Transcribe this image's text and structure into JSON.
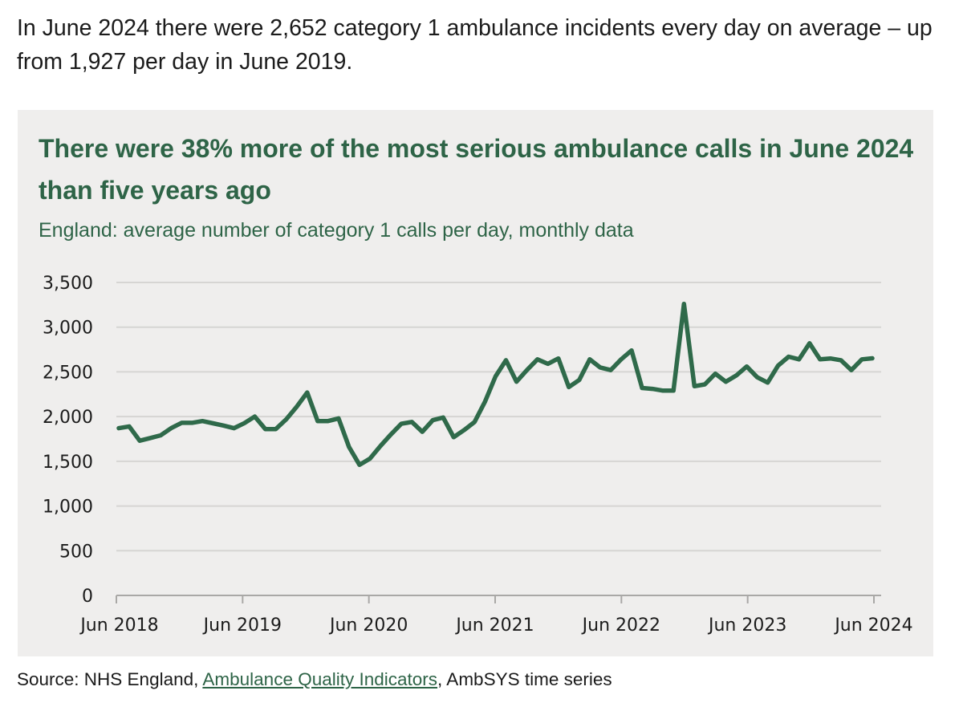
{
  "intro": {
    "text": "In June 2024 there were 2,652 category 1 ambulance incidents every day on average – up from 1,927 per day in June 2019."
  },
  "colors": {
    "line": "#2f6a4a",
    "title": "#2e6447",
    "panel_bg": "#efeeed",
    "grid": "#d6d5d3",
    "axis": "#a9a8a6"
  },
  "source": {
    "prefix": "Source: NHS England, ",
    "link_text": "Ambulance Quality Indicators",
    "suffix": ", AmbSYS time series"
  },
  "chart_data": {
    "type": "line",
    "title": "There were 38% more of the most serious ambulance calls in June 2024 than five years ago",
    "subtitle": "England: average number of category 1 calls per day, monthly data",
    "xlabel": "",
    "ylabel": "",
    "ylim": [
      0,
      3500
    ],
    "yticks": [
      0,
      500,
      1000,
      1500,
      2000,
      2500,
      3000,
      3500
    ],
    "ytick_labels": [
      "0",
      "500",
      "1,000",
      "1,500",
      "2,000",
      "2,500",
      "3,000",
      "3,500"
    ],
    "xtick_labels": [
      "Jun 2018",
      "Jun 2019",
      "Jun 2020",
      "Jun 2021",
      "Jun 2022",
      "Jun 2023",
      "Jun 2024"
    ],
    "xtick_month_index": [
      0,
      12,
      24,
      36,
      48,
      60,
      72
    ],
    "grid": true,
    "legend": "none",
    "x_start": "Jun 2018",
    "x_end": "Jun 2024",
    "series": [
      {
        "name": "Category 1 calls per day",
        "values": [
          1870,
          1890,
          1730,
          1760,
          1790,
          1870,
          1930,
          1930,
          1950,
          1925,
          1900,
          1870,
          1927,
          2000,
          1860,
          1860,
          1970,
          2110,
          2270,
          1950,
          1950,
          1980,
          1660,
          1460,
          1530,
          1670,
          1800,
          1920,
          1940,
          1830,
          1960,
          1990,
          1770,
          1850,
          1940,
          2170,
          2450,
          2630,
          2390,
          2520,
          2640,
          2590,
          2650,
          2330,
          2410,
          2640,
          2550,
          2520,
          2640,
          2740,
          2320,
          2310,
          2290,
          2290,
          3260,
          2340,
          2360,
          2480,
          2390,
          2460,
          2560,
          2440,
          2380,
          2570,
          2670,
          2640,
          2820,
          2640,
          2650,
          2630,
          2520,
          2640,
          2652
        ]
      }
    ]
  }
}
